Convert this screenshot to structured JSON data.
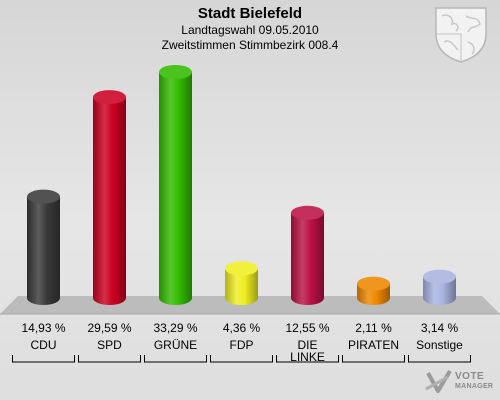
{
  "header": {
    "title": "Stadt Bielefeld",
    "subtitle": "Landtagswahl 09.05.2010",
    "subtitle2": "Zweitstimmen Stimmbezirk 008.4"
  },
  "brand": {
    "line1": "VOTE",
    "line2": "MANAGER"
  },
  "chart_data": {
    "type": "bar",
    "title": "Stadt Bielefeld",
    "subtitle": "Landtagswahl 09.05.2010 · Zweitstimmen Stimmbezirk 008.4",
    "categories": [
      "CDU",
      "SPD",
      "GRÜNE",
      "FDP",
      "DIE LINKE",
      "PIRATEN",
      "Sonstige"
    ],
    "category_lines": [
      [
        "CDU"
      ],
      [
        "SPD"
      ],
      [
        "GRÜNE"
      ],
      [
        "FDP"
      ],
      [
        "DIE",
        "LINKE"
      ],
      [
        "PIRATEN"
      ],
      [
        "Sonstige"
      ]
    ],
    "values": [
      14.93,
      29.59,
      33.29,
      4.36,
      12.55,
      2.11,
      3.14
    ],
    "value_labels": [
      "14,93 %",
      "29,59 %",
      "33,29 %",
      "4,36 %",
      "12,55 %",
      "2,11 %",
      "3,14 %"
    ],
    "colors": [
      "#3a3a3a",
      "#cc0022",
      "#33bb00",
      "#eeee22",
      "#bb1144",
      "#ee8800",
      "#a9b4e0"
    ],
    "unit": "%",
    "ylim": [
      0,
      33.29
    ],
    "grid": false,
    "legend": "none"
  }
}
